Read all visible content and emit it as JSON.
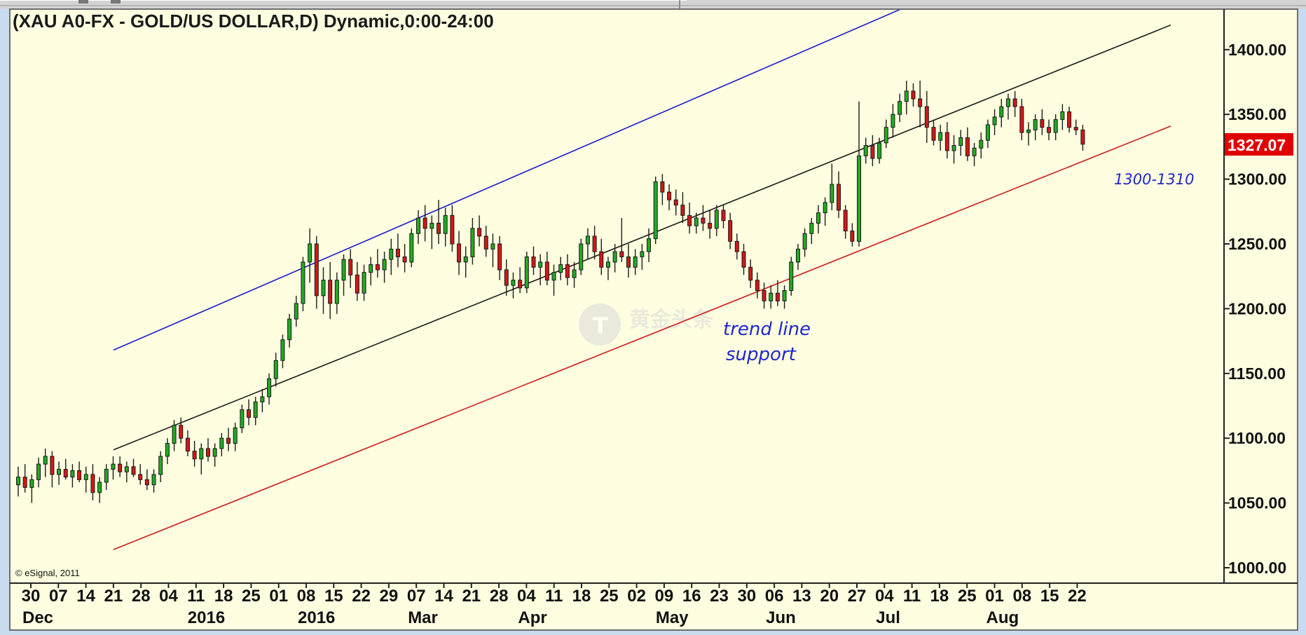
{
  "chart_data": {
    "type": "candlestick",
    "title": "(XAU A0-FX - GOLD/US DOLLAR,D) Dynamic,0:00-24:00",
    "ylim": [
      975,
      1425
    ],
    "y_ticks": [
      "1000.00",
      "1050.00",
      "1100.00",
      "1150.00",
      "1200.00",
      "1250.00",
      "1300.00",
      "1350.00",
      "1400.00"
    ],
    "x_ticks": [
      "30",
      "07",
      "14",
      "21",
      "28",
      "04",
      "11",
      "18",
      "25",
      "01",
      "08",
      "15",
      "22",
      "29",
      "07",
      "14",
      "21",
      "28",
      "04",
      "11",
      "18",
      "25",
      "02",
      "09",
      "16",
      "23",
      "30",
      "06",
      "13",
      "20",
      "27",
      "04",
      "11",
      "18",
      "25",
      "01",
      "08",
      "15",
      "22"
    ],
    "month_labels": [
      {
        "label": "Dec",
        "tick_index": 0
      },
      {
        "label": "2016",
        "tick_index": 6
      },
      {
        "label": "2016",
        "tick_index": 10
      },
      {
        "label": "Mar",
        "tick_index": 14
      },
      {
        "label": "Apr",
        "tick_index": 18
      },
      {
        "label": "May",
        "tick_index": 23
      },
      {
        "label": "Jun",
        "tick_index": 27
      },
      {
        "label": "Jul",
        "tick_index": 31
      },
      {
        "label": "Aug",
        "tick_index": 35
      }
    ],
    "last_price": "1327.07",
    "annotations": {
      "support_line1": "trend line",
      "support_line2": "support",
      "target_zone": "1300-1310"
    },
    "copyright": "© eSignal, 2011",
    "watermark": "黄金头条",
    "trend_lines": [
      {
        "name": "upper-channel",
        "color": "#1a1acc",
        "from": [
          3,
          1168
        ],
        "to": [
          38.3,
          1493
        ]
      },
      {
        "name": "middle-channel",
        "color": "#1a1a1a",
        "from": [
          3,
          1091
        ],
        "to": [
          41.4,
          1419
        ]
      },
      {
        "name": "lower-support",
        "color": "#cc1a1a",
        "from": [
          3,
          1014
        ],
        "to": [
          41.4,
          1341
        ]
      }
    ],
    "candles": [
      [
        1064,
        1078,
        1055,
        1070
      ],
      [
        1070,
        1080,
        1058,
        1062
      ],
      [
        1062,
        1072,
        1050,
        1068
      ],
      [
        1068,
        1085,
        1062,
        1080
      ],
      [
        1080,
        1092,
        1070,
        1086
      ],
      [
        1086,
        1090,
        1062,
        1072
      ],
      [
        1072,
        1082,
        1064,
        1076
      ],
      [
        1076,
        1084,
        1068,
        1070
      ],
      [
        1070,
        1080,
        1062,
        1075
      ],
      [
        1075,
        1082,
        1066,
        1068
      ],
      [
        1068,
        1078,
        1058,
        1072
      ],
      [
        1072,
        1080,
        1052,
        1058
      ],
      [
        1058,
        1070,
        1050,
        1066
      ],
      [
        1066,
        1080,
        1060,
        1076
      ],
      [
        1076,
        1086,
        1068,
        1080
      ],
      [
        1080,
        1086,
        1070,
        1074
      ],
      [
        1074,
        1082,
        1066,
        1078
      ],
      [
        1078,
        1084,
        1070,
        1072
      ],
      [
        1072,
        1080,
        1064,
        1068
      ],
      [
        1068,
        1076,
        1060,
        1064
      ],
      [
        1064,
        1076,
        1058,
        1072
      ],
      [
        1072,
        1090,
        1066,
        1086
      ],
      [
        1086,
        1100,
        1080,
        1096
      ],
      [
        1096,
        1114,
        1090,
        1110
      ],
      [
        1110,
        1116,
        1096,
        1100
      ],
      [
        1100,
        1106,
        1086,
        1090
      ],
      [
        1090,
        1098,
        1078,
        1084
      ],
      [
        1084,
        1096,
        1072,
        1092
      ],
      [
        1092,
        1100,
        1082,
        1086
      ],
      [
        1086,
        1096,
        1078,
        1092
      ],
      [
        1092,
        1104,
        1086,
        1100
      ],
      [
        1100,
        1108,
        1090,
        1096
      ],
      [
        1096,
        1112,
        1090,
        1108
      ],
      [
        1108,
        1126,
        1104,
        1122
      ],
      [
        1122,
        1130,
        1110,
        1116
      ],
      [
        1116,
        1132,
        1110,
        1128
      ],
      [
        1128,
        1138,
        1120,
        1132
      ],
      [
        1132,
        1150,
        1126,
        1146
      ],
      [
        1146,
        1166,
        1140,
        1160
      ],
      [
        1160,
        1180,
        1154,
        1176
      ],
      [
        1176,
        1196,
        1170,
        1192
      ],
      [
        1192,
        1210,
        1186,
        1204
      ],
      [
        1204,
        1240,
        1198,
        1236
      ],
      [
        1236,
        1262,
        1220,
        1250
      ],
      [
        1250,
        1256,
        1200,
        1210
      ],
      [
        1210,
        1232,
        1196,
        1222
      ],
      [
        1222,
        1236,
        1192,
        1204
      ],
      [
        1204,
        1228,
        1196,
        1222
      ],
      [
        1222,
        1242,
        1210,
        1238
      ],
      [
        1238,
        1246,
        1216,
        1226
      ],
      [
        1226,
        1236,
        1206,
        1212
      ],
      [
        1212,
        1234,
        1206,
        1228
      ],
      [
        1228,
        1240,
        1218,
        1234
      ],
      [
        1234,
        1246,
        1224,
        1230
      ],
      [
        1230,
        1244,
        1220,
        1238
      ],
      [
        1238,
        1254,
        1226,
        1246
      ],
      [
        1246,
        1258,
        1232,
        1240
      ],
      [
        1240,
        1250,
        1228,
        1236
      ],
      [
        1236,
        1262,
        1232,
        1258
      ],
      [
        1258,
        1276,
        1250,
        1270
      ],
      [
        1270,
        1280,
        1252,
        1262
      ],
      [
        1262,
        1272,
        1246,
        1266
      ],
      [
        1266,
        1284,
        1250,
        1258
      ],
      [
        1258,
        1278,
        1248,
        1272
      ],
      [
        1272,
        1280,
        1244,
        1250
      ],
      [
        1250,
        1260,
        1226,
        1236
      ],
      [
        1236,
        1248,
        1224,
        1240
      ],
      [
        1240,
        1270,
        1234,
        1262
      ],
      [
        1262,
        1272,
        1248,
        1256
      ],
      [
        1256,
        1264,
        1240,
        1246
      ],
      [
        1246,
        1258,
        1232,
        1250
      ],
      [
        1250,
        1256,
        1222,
        1230
      ],
      [
        1230,
        1238,
        1210,
        1218
      ],
      [
        1218,
        1228,
        1208,
        1222
      ],
      [
        1222,
        1232,
        1212,
        1216
      ],
      [
        1216,
        1244,
        1212,
        1240
      ],
      [
        1240,
        1248,
        1226,
        1232
      ],
      [
        1232,
        1242,
        1218,
        1236
      ],
      [
        1236,
        1244,
        1218,
        1222
      ],
      [
        1222,
        1234,
        1210,
        1228
      ],
      [
        1228,
        1240,
        1222,
        1234
      ],
      [
        1234,
        1242,
        1218,
        1224
      ],
      [
        1224,
        1236,
        1216,
        1230
      ],
      [
        1230,
        1254,
        1226,
        1250
      ],
      [
        1250,
        1262,
        1238,
        1256
      ],
      [
        1256,
        1264,
        1238,
        1244
      ],
      [
        1244,
        1254,
        1226,
        1232
      ],
      [
        1232,
        1240,
        1222,
        1236
      ],
      [
        1236,
        1250,
        1228,
        1244
      ],
      [
        1244,
        1270,
        1236,
        1240
      ],
      [
        1240,
        1250,
        1224,
        1232
      ],
      [
        1232,
        1246,
        1226,
        1240
      ],
      [
        1240,
        1250,
        1230,
        1244
      ],
      [
        1244,
        1262,
        1236,
        1254
      ],
      [
        1254,
        1302,
        1250,
        1298
      ],
      [
        1298,
        1304,
        1280,
        1290
      ],
      [
        1290,
        1296,
        1276,
        1284
      ],
      [
        1284,
        1292,
        1272,
        1280
      ],
      [
        1280,
        1290,
        1266,
        1272
      ],
      [
        1272,
        1282,
        1258,
        1264
      ],
      [
        1264,
        1274,
        1258,
        1270
      ],
      [
        1270,
        1280,
        1260,
        1266
      ],
      [
        1266,
        1276,
        1254,
        1262
      ],
      [
        1262,
        1280,
        1256,
        1276
      ],
      [
        1276,
        1280,
        1262,
        1268
      ],
      [
        1268,
        1274,
        1246,
        1252
      ],
      [
        1252,
        1258,
        1238,
        1244
      ],
      [
        1244,
        1250,
        1226,
        1232
      ],
      [
        1232,
        1238,
        1216,
        1222
      ],
      [
        1222,
        1228,
        1208,
        1214
      ],
      [
        1214,
        1220,
        1200,
        1206
      ],
      [
        1206,
        1218,
        1200,
        1212
      ],
      [
        1212,
        1222,
        1202,
        1206
      ],
      [
        1206,
        1218,
        1200,
        1214
      ],
      [
        1214,
        1240,
        1210,
        1236
      ],
      [
        1236,
        1250,
        1230,
        1246
      ],
      [
        1246,
        1262,
        1240,
        1258
      ],
      [
        1258,
        1270,
        1250,
        1266
      ],
      [
        1266,
        1280,
        1258,
        1274
      ],
      [
        1274,
        1286,
        1264,
        1282
      ],
      [
        1282,
        1312,
        1276,
        1296
      ],
      [
        1296,
        1306,
        1270,
        1276
      ],
      [
        1276,
        1280,
        1254,
        1260
      ],
      [
        1260,
        1266,
        1248,
        1252
      ],
      [
        1252,
        1360,
        1248,
        1318
      ],
      [
        1318,
        1332,
        1312,
        1326
      ],
      [
        1326,
        1334,
        1310,
        1316
      ],
      [
        1316,
        1332,
        1312,
        1328
      ],
      [
        1328,
        1346,
        1324,
        1340
      ],
      [
        1340,
        1358,
        1332,
        1350
      ],
      [
        1350,
        1366,
        1344,
        1360
      ],
      [
        1360,
        1376,
        1350,
        1368
      ],
      [
        1368,
        1374,
        1356,
        1362
      ],
      [
        1362,
        1376,
        1340,
        1356
      ],
      [
        1356,
        1368,
        1328,
        1340
      ],
      [
        1340,
        1346,
        1326,
        1330
      ],
      [
        1330,
        1342,
        1322,
        1336
      ],
      [
        1336,
        1344,
        1316,
        1322
      ],
      [
        1322,
        1334,
        1312,
        1326
      ],
      [
        1326,
        1338,
        1318,
        1332
      ],
      [
        1332,
        1340,
        1314,
        1318
      ],
      [
        1318,
        1328,
        1310,
        1324
      ],
      [
        1324,
        1336,
        1316,
        1330
      ],
      [
        1330,
        1346,
        1324,
        1342
      ],
      [
        1342,
        1354,
        1334,
        1348
      ],
      [
        1348,
        1362,
        1340,
        1356
      ],
      [
        1356,
        1366,
        1346,
        1362
      ],
      [
        1362,
        1368,
        1348,
        1356
      ],
      [
        1356,
        1362,
        1330,
        1336
      ],
      [
        1336,
        1344,
        1326,
        1338
      ],
      [
        1338,
        1350,
        1330,
        1346
      ],
      [
        1346,
        1354,
        1334,
        1340
      ],
      [
        1340,
        1346,
        1330,
        1336
      ],
      [
        1336,
        1350,
        1330,
        1346
      ],
      [
        1346,
        1358,
        1338,
        1352
      ],
      [
        1352,
        1356,
        1336,
        1340
      ],
      [
        1340,
        1346,
        1334,
        1338
      ],
      [
        1338,
        1342,
        1322,
        1327
      ]
    ]
  }
}
